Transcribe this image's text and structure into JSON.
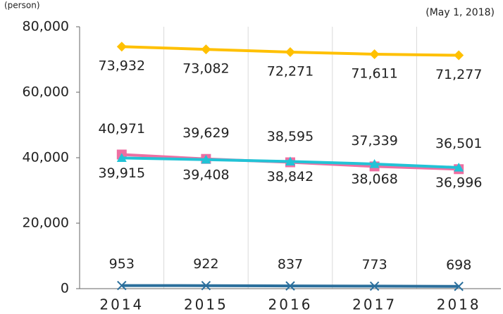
{
  "chart_data": {
    "type": "line",
    "unit_label": "(person)",
    "note": "(May 1, 2018)",
    "categories": [
      "2014",
      "2015",
      "2016",
      "2017",
      "2018"
    ],
    "ylim": [
      0,
      80000
    ],
    "yticks": [
      0,
      {
        "value": 20000,
        "label": "20,000"
      },
      {
        "value": 40000,
        "label": "40,000"
      },
      {
        "value": 60000,
        "label": "60,000"
      },
      {
        "value": 80000,
        "label": "80,000"
      }
    ],
    "category_dividers": true,
    "series": [
      {
        "color": "#ffc000",
        "marker": "diamond",
        "values": [
          73932,
          73082,
          72271,
          71611,
          71277
        ],
        "value_labels": [
          "73,932",
          "73,082",
          "72,271",
          "71,611",
          "71,277"
        ]
      },
      {
        "color": "#ee6fa2",
        "marker": "square",
        "values": [
          40971,
          39629,
          38595,
          37339,
          36501
        ],
        "value_labels": [
          "40,971",
          "39,629",
          "38,595",
          "37,339",
          "36,501"
        ]
      },
      {
        "color": "#22c3d6",
        "marker": "triangle",
        "values": [
          39915,
          39408,
          38842,
          38068,
          36996
        ],
        "value_labels": [
          "39,915",
          "39,408",
          "38,842",
          "38,068",
          "36,996"
        ]
      },
      {
        "color": "#2b6f9c",
        "marker": "x",
        "values": [
          953,
          922,
          837,
          773,
          698
        ]
      }
    ]
  }
}
